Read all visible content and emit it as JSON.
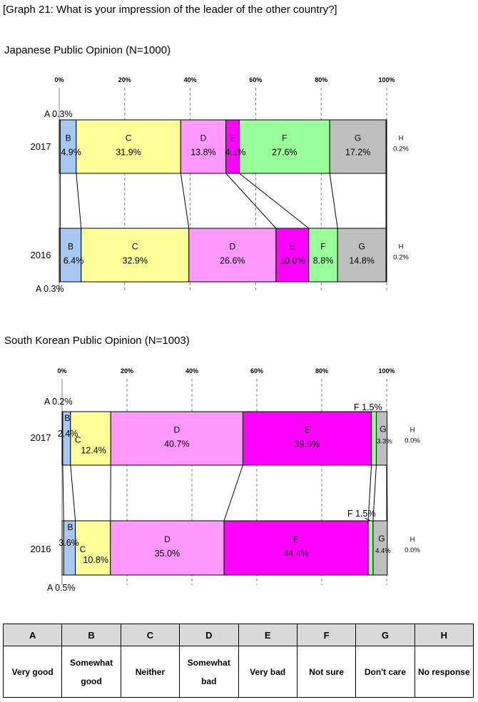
{
  "title": "[Graph 21: What is your impression of the leader of the other country?]",
  "chart_data": [
    {
      "type": "stacked-bar",
      "title": "Japanese Public Opinion (N=1000)",
      "axis_ticks": [
        "0%",
        "20%",
        "40%",
        "60%",
        "80%",
        "100%"
      ],
      "xlim": [
        0,
        100
      ],
      "categories": [
        "A",
        "B",
        "C",
        "D",
        "E",
        "F",
        "G",
        "H"
      ],
      "series": [
        {
          "name": "2017",
          "values": [
            0.3,
            4.9,
            31.9,
            13.8,
            4.1,
            27.6,
            17.2,
            0.2
          ],
          "labels": [
            "A 0.3%",
            "4.9%",
            "31.9%",
            "13.8%",
            "4.1%",
            "27.6%",
            "17.2%",
            "0.2%"
          ]
        },
        {
          "name": "2016",
          "values": [
            0.3,
            6.4,
            32.9,
            26.6,
            10.0,
            8.8,
            14.8,
            0.2
          ],
          "labels": [
            "A 0.3%",
            "6.4%",
            "32.9%",
            "26.6%",
            "10.0%",
            "8.8%",
            "14.8%",
            "0.2%"
          ]
        }
      ]
    },
    {
      "type": "stacked-bar",
      "title": "South Korean Public Opinion (N=1003)",
      "axis_ticks": [
        "0%",
        "20%",
        "40%",
        "60%",
        "80%",
        "100%"
      ],
      "xlim": [
        0,
        100
      ],
      "categories": [
        "A",
        "B",
        "C",
        "D",
        "E",
        "F",
        "G",
        "H"
      ],
      "series": [
        {
          "name": "2017",
          "values": [
            0.2,
            2.4,
            12.4,
            40.7,
            39.6,
            1.5,
            3.3,
            0.0
          ],
          "labels": [
            "A 0.2%",
            "2.4%",
            "12.4%",
            "40.7%",
            "39.6%",
            "F 1.5%",
            "3.3%",
            "0.0%"
          ]
        },
        {
          "name": "2016",
          "values": [
            0.5,
            3.6,
            10.8,
            35.0,
            44.4,
            1.5,
            4.4,
            0.0
          ],
          "labels": [
            "A 0.5%",
            "3.6%",
            "10.8%",
            "35.0%",
            "44.4%",
            "F 1.5%",
            "4.4%",
            "0.0%"
          ]
        }
      ]
    }
  ],
  "colors": {
    "A": "#ffffff",
    "B": "#a6c8f2",
    "C": "#ffff99",
    "D": "#ff99ff",
    "E": "#ff00ff",
    "F": "#99ff99",
    "G": "#bfbfbf",
    "H": "#ffffff"
  },
  "legend": {
    "letters": [
      "A",
      "B",
      "C",
      "D",
      "E",
      "F",
      "G",
      "H"
    ],
    "meanings": [
      "Very good",
      "Somewhat good",
      "Neither",
      "Somewhat bad",
      "Very bad",
      "Not sure",
      "Don't care",
      "No response"
    ]
  }
}
